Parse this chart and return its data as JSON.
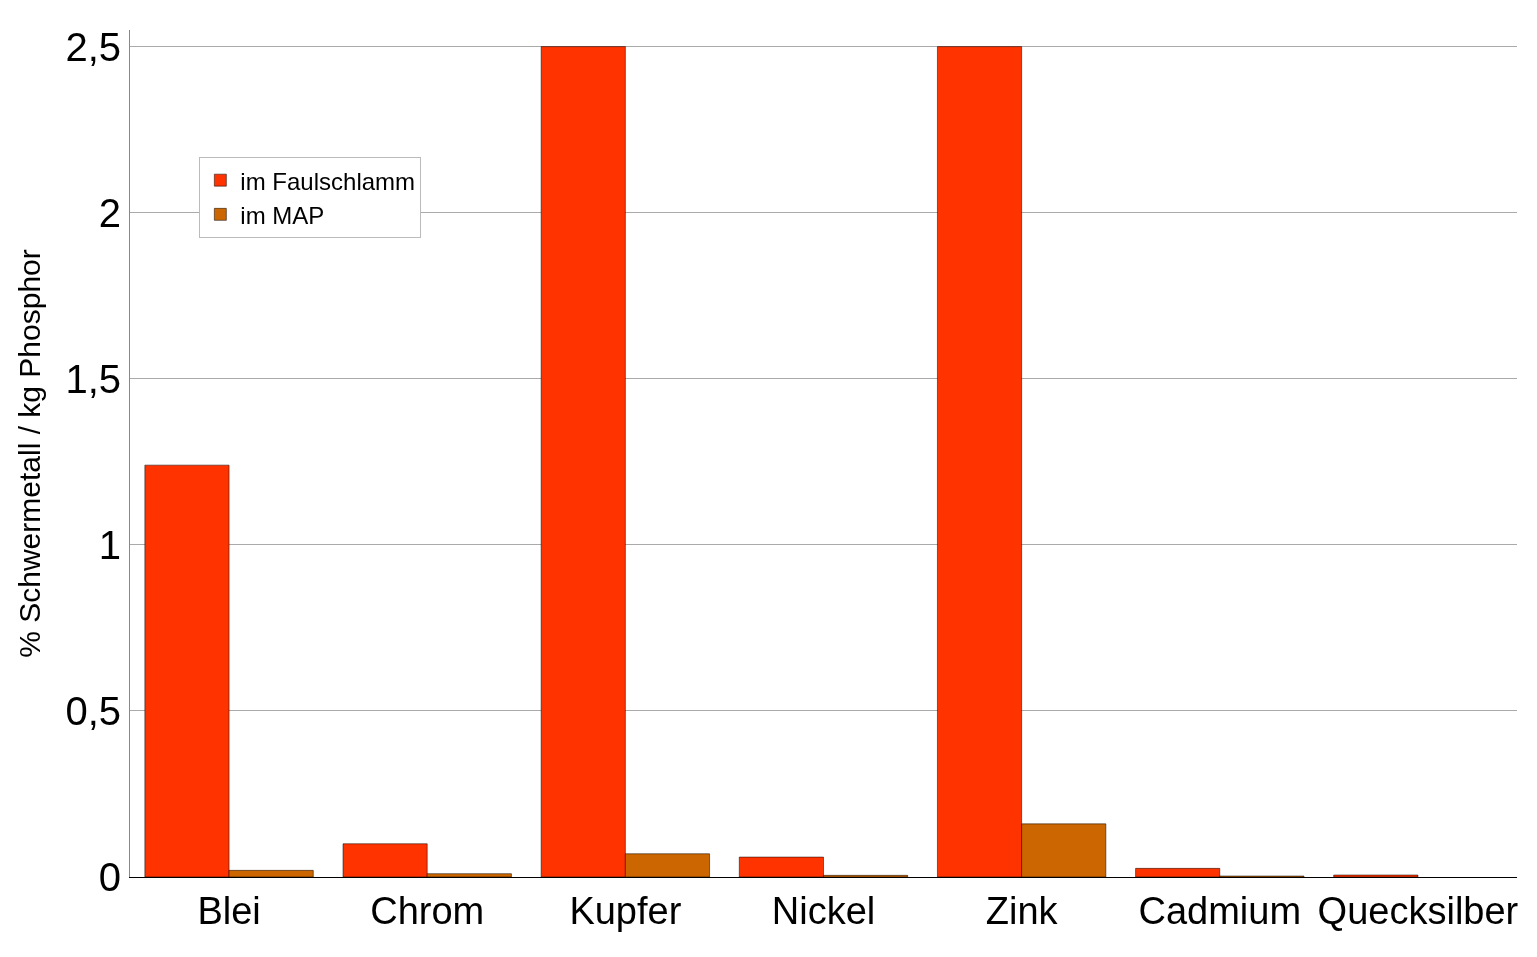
{
  "chart_data": {
    "type": "bar",
    "ylabel": "% Schwermetall / kg Phosphor",
    "categories": [
      "Blei",
      "Chrom",
      "Kupfer",
      "Nickel",
      "Zink",
      "Cadmium",
      "Quecksilber"
    ],
    "series": [
      {
        "name": "im Faulschlamm",
        "color": "#ff3300",
        "values": [
          1.24,
          0.1,
          2.5,
          0.06,
          2.5,
          0.026,
          0.006
        ]
      },
      {
        "name": "im MAP",
        "color": "#cc6600",
        "values": [
          0.02,
          0.01,
          0.07,
          0.005,
          0.16,
          0.003,
          null
        ]
      }
    ],
    "ylim": [
      0,
      2.55
    ],
    "yticks": [
      0,
      {
        "value": 0.5,
        "label": "0,5"
      },
      1,
      {
        "value": 1.5,
        "label": "1,5"
      },
      2,
      {
        "value": 2.5,
        "label": "2,5"
      }
    ],
    "grid": "y",
    "legend": "top left"
  }
}
